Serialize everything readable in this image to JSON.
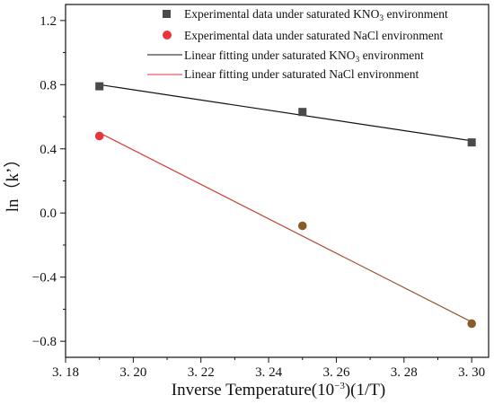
{
  "chart_data": {
    "type": "scatter",
    "xlabel": "Inverse Temperature(10",
    "xlabel_sup": "−3",
    "xlabel_tail": ")(1/T)",
    "ylabel": "ln（k’）",
    "xlim": [
      3.18,
      3.305
    ],
    "ylim": [
      -0.9,
      1.3
    ],
    "x_ticks": [
      3.18,
      3.2,
      3.22,
      3.24,
      3.26,
      3.28,
      3.3
    ],
    "x_tick_labels": [
      "3. 18",
      "3. 20",
      "3. 22",
      "3. 24",
      "3. 26",
      "3. 28",
      "3. 30"
    ],
    "y_ticks": [
      1.2,
      0.8,
      0.4,
      0.0,
      -0.4,
      -0.8
    ],
    "y_tick_labels": [
      "1.2",
      "0.8",
      "0.4",
      "0.0",
      "−0.4",
      "−0.8"
    ],
    "grid": false,
    "legend_position": "top-right",
    "series": [
      {
        "name": "Experimental data under saturated KNO3 environment",
        "name_prefix": "Experimental data under saturated KNO",
        "name_sub": "3",
        "name_suffix": " environment",
        "kind": "scatter",
        "marker": "square",
        "color": "#4a4a4a",
        "x": [
          3.19,
          3.25,
          3.3
        ],
        "y": [
          0.79,
          0.63,
          0.44
        ]
      },
      {
        "name": "Experimental data under saturated NaCl environment",
        "kind": "scatter",
        "marker": "circle",
        "color": "#e8353a",
        "x": [
          3.19,
          3.25,
          3.3
        ],
        "y": [
          0.48,
          -0.08,
          -0.69
        ]
      },
      {
        "name": "Linear fitting under saturated KNO3 environment",
        "name_prefix": "Linear fitting under saturated KNO",
        "name_sub": "3",
        "name_suffix": " environment",
        "kind": "line",
        "color": "#111111",
        "x": [
          3.19,
          3.3
        ],
        "y": [
          0.8,
          0.45
        ]
      },
      {
        "name": "Linear fitting under saturated NaCl environment",
        "kind": "line",
        "color": "#e8353a",
        "color_end": "#8a5a2a",
        "x": [
          3.19,
          3.3
        ],
        "y": [
          0.5,
          -0.68
        ]
      }
    ]
  }
}
